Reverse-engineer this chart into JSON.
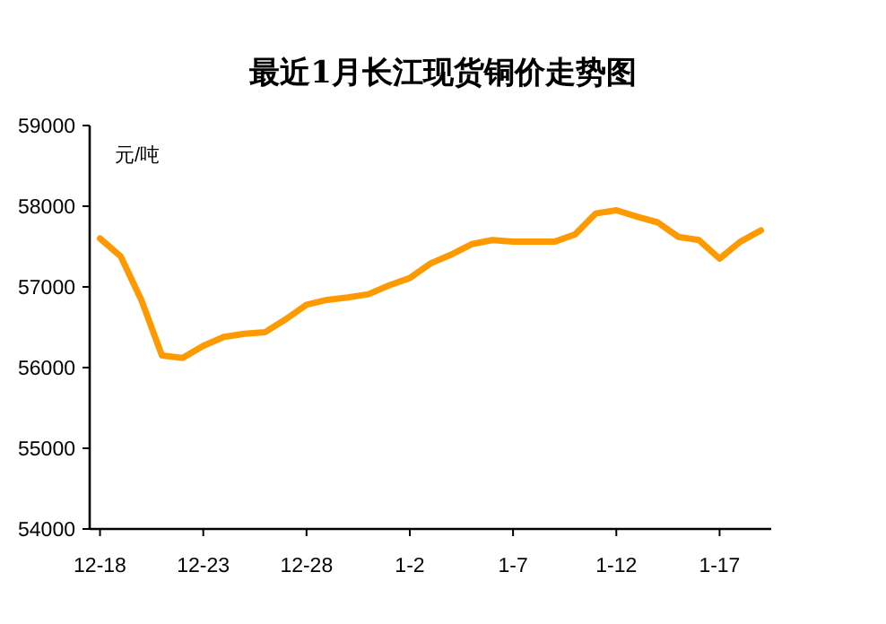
{
  "chart_data": {
    "type": "line",
    "title": "最近1月长江现货铜价走势图",
    "ylabel": "元/吨",
    "categories": [
      "12-18",
      null,
      null,
      null,
      null,
      "12-23",
      null,
      null,
      null,
      null,
      "12-28",
      null,
      null,
      null,
      null,
      "1-2",
      null,
      null,
      null,
      null,
      "1-7",
      null,
      null,
      null,
      null,
      "1-12",
      null,
      null,
      null,
      null,
      "1-17",
      null,
      null
    ],
    "series": [
      {
        "color": "#ff9900",
        "values": [
          57600,
          57380,
          56840,
          56150,
          56120,
          56270,
          56380,
          56420,
          56440,
          56600,
          56780,
          56840,
          56870,
          56910,
          57020,
          57110,
          57290,
          57400,
          57530,
          57580,
          57560,
          57560,
          57560,
          57650,
          57910,
          57950,
          57870,
          57800,
          57620,
          57580,
          57350,
          57560,
          57700
        ]
      }
    ],
    "ylim": [
      54000,
      59000
    ],
    "yticks": [
      54000,
      55000,
      56000,
      57000,
      58000,
      59000
    ],
    "grid": false,
    "marker": "none",
    "line_style": "solid"
  }
}
